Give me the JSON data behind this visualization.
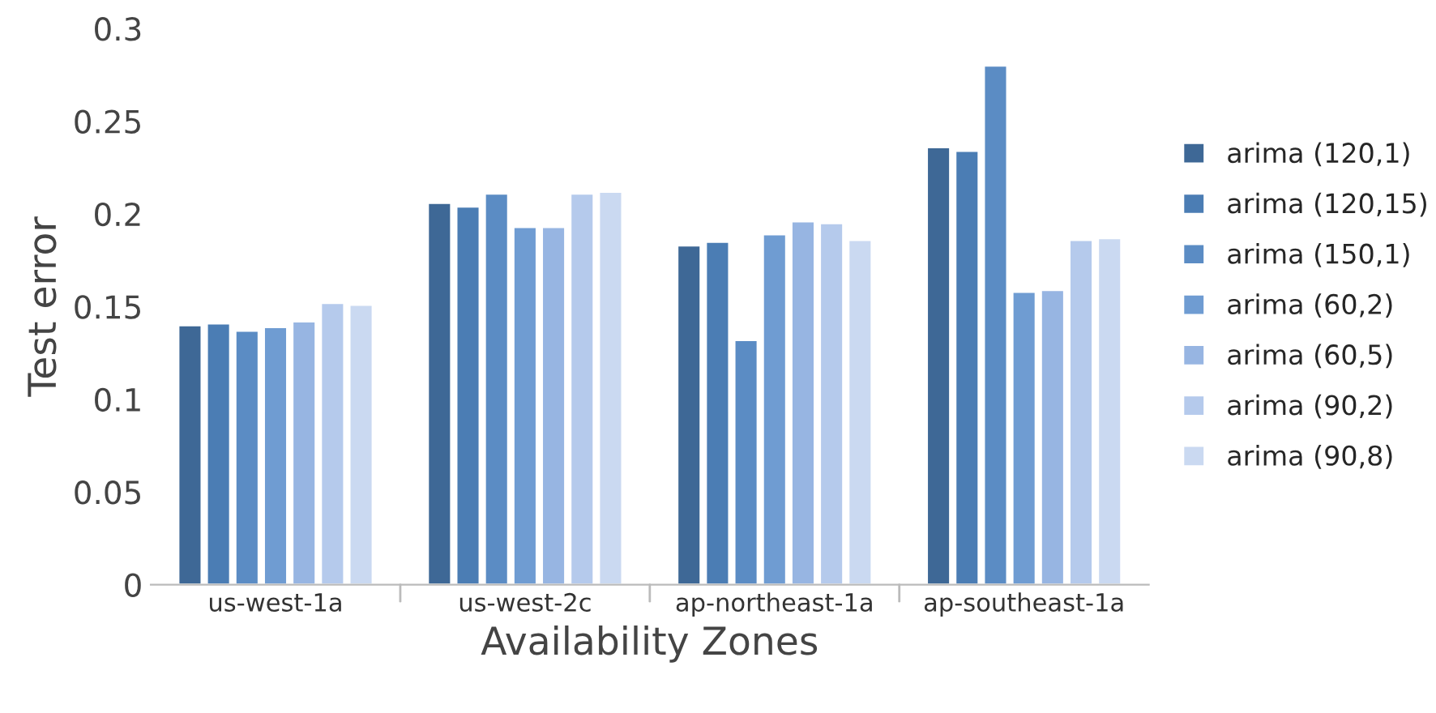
{
  "chart_data": {
    "type": "bar",
    "xlabel": "Availability Zones",
    "ylabel": "Test error",
    "categories": [
      "us-west-1a",
      "us-west-2c",
      "ap-northeast-1a",
      "ap-southeast-1a"
    ],
    "series": [
      {
        "name": "arima (120,1)",
        "color": "#3e6896",
        "values": [
          0.14,
          0.206,
          0.183,
          0.236
        ]
      },
      {
        "name": "arima (120,15)",
        "color": "#4b7db4",
        "values": [
          0.141,
          0.204,
          0.185,
          0.234
        ]
      },
      {
        "name": "arima (150,1)",
        "color": "#5b8cc4",
        "values": [
          0.137,
          0.211,
          0.132,
          0.28
        ]
      },
      {
        "name": "arima (60,2)",
        "color": "#6f9cd2",
        "values": [
          0.139,
          0.193,
          0.189,
          0.158
        ]
      },
      {
        "name": "arima (60,5)",
        "color": "#97b5e2",
        "values": [
          0.142,
          0.193,
          0.196,
          0.159
        ]
      },
      {
        "name": "arima (90,2)",
        "color": "#b5caec",
        "values": [
          0.152,
          0.211,
          0.195,
          0.186
        ]
      },
      {
        "name": "arima (90,8)",
        "color": "#cad9f1",
        "values": [
          0.151,
          0.212,
          0.186,
          0.187
        ]
      }
    ],
    "ylim": [
      0,
      0.3
    ],
    "yticks": [
      0,
      0.05,
      0.1,
      0.15,
      0.2,
      0.25,
      0.3
    ],
    "legend": "right",
    "grid": false
  }
}
